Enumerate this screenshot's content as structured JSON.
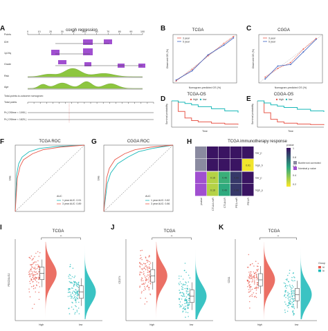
{
  "panels": {
    "A": {
      "label": "A",
      "title": "coxph regression",
      "rows": [
        "Points",
        "IDH",
        "1p19q",
        "Grade",
        "Risk",
        "Age",
        "Total points",
        "Pr( OStime < 1095 )",
        "Pr( OStime < 1825 )"
      ],
      "subtitle": "Total-points-to-outcome nomogram:",
      "points_ticks": [
        "0",
        "10",
        "20",
        "30",
        "40",
        "50",
        "60",
        "70",
        "80",
        "90",
        "100"
      ]
    },
    "B": {
      "label": "B",
      "title": "TCGA",
      "xlabel": "Nomogram-predicted OS (%)",
      "ylabel": "Observed OS (%)",
      "legend": [
        "3 year",
        "5 year"
      ]
    },
    "C": {
      "label": "C",
      "title": "CGGA",
      "xlabel": "Nomogram-predicted OS (%)",
      "ylabel": "Observed OS (%)",
      "legend": [
        "3 year",
        "5 year"
      ]
    },
    "D": {
      "label": "D",
      "title": "TCGA-OS",
      "xlabel": "Time",
      "ylabel": "Survival probability",
      "legend": [
        "high",
        "low"
      ]
    },
    "E": {
      "label": "E",
      "title": "CGGA-OS",
      "xlabel": "Time",
      "ylabel": "Survival probability",
      "legend": [
        "high",
        "low"
      ]
    },
    "F": {
      "label": "F",
      "title": "TCGA ROC",
      "ylabel": "TPR",
      "legend_title": "AUC",
      "legend": [
        "1 year AUC: 0.91",
        "3 year AUC: 0.89"
      ]
    },
    "G": {
      "label": "G",
      "title": "CGGA ROC",
      "ylabel": "TPR",
      "legend_title": "AUC",
      "legend": [
        "1 year AUC: 0.82",
        "3 year AUC: 0.86"
      ]
    },
    "H": {
      "label": "H",
      "title": "TCGA immunotherapy response",
      "rows": [
        "low_p",
        "high_b",
        "low_p",
        "high_p"
      ],
      "cols": [
        "pvalue",
        "CTLA4-noR",
        "CTLA4-R",
        "PD1-noR",
        "PD1-R"
      ],
      "cells": [
        [
          "",
          "",
          "",
          "",
          ""
        ],
        [
          "",
          "",
          "",
          "",
          "0.01"
        ],
        [
          "",
          "0.16",
          "0.46",
          "0.88",
          ""
        ],
        [
          "",
          "0.16",
          "0.49",
          "0.88",
          ""
        ]
      ],
      "colorbar_title": "pvalue",
      "colorbar_ticks": [
        "1",
        "0.8",
        "0.6",
        "0.4",
        "0.2"
      ],
      "legend": [
        "Bonferroni corrected",
        "Nominal p value"
      ]
    },
    "I": {
      "label": "I",
      "title": "TCGA",
      "ylabel": "PDCD1LG2",
      "groups": [
        "high",
        "low"
      ],
      "signif": "**"
    },
    "J": {
      "label": "J",
      "title": "TCGA",
      "ylabel": "CD274",
      "groups": [
        "high",
        "low"
      ],
      "signif": "**"
    },
    "K": {
      "label": "K",
      "title": "TCGA",
      "ylabel": "CD11",
      "groups": [
        "high",
        "low"
      ],
      "signif": "**",
      "legend_title": "Group",
      "legend": [
        "hi",
        "lo"
      ]
    }
  },
  "colors": {
    "red": "#e8574a",
    "teal": "#17b8b8",
    "blue": "#3b5fc0",
    "purple": "#a04fd0",
    "green": "#8dc63f",
    "heat_low": "#f5e62a",
    "heat_mid": "#2aa980",
    "heat_high": "#3a1462"
  },
  "chart_data": [
    {
      "type": "line",
      "title": "TCGA",
      "xlabel": "Nomogram-predicted OS (%)",
      "ylabel": "Observed OS (%)",
      "series": [
        {
          "name": "3 year",
          "x": [
            0.05,
            0.3,
            0.55,
            0.8,
            0.95
          ],
          "y": [
            0.04,
            0.28,
            0.56,
            0.82,
            0.96
          ]
        },
        {
          "name": "5 year",
          "x": [
            0.05,
            0.3,
            0.55,
            0.8,
            0.95
          ],
          "y": [
            0.06,
            0.25,
            0.58,
            0.78,
            0.93
          ]
        }
      ]
    },
    {
      "type": "line",
      "title": "CGGA",
      "xlabel": "Nomogram-predicted OS (%)",
      "ylabel": "Observed OS (%)",
      "series": [
        {
          "name": "3 year",
          "x": [
            0.1,
            0.3,
            0.5,
            0.7,
            0.9
          ],
          "y": [
            0.12,
            0.3,
            0.42,
            0.7,
            0.92
          ]
        },
        {
          "name": "5 year",
          "x": [
            0.1,
            0.3,
            0.5,
            0.7,
            0.9
          ],
          "y": [
            0.08,
            0.35,
            0.38,
            0.64,
            0.9
          ]
        }
      ]
    },
    {
      "type": "line",
      "title": "TCGA-OS",
      "xlabel": "Time",
      "ylabel": "Survival probability",
      "series": [
        {
          "name": "high",
          "x": [
            0,
            1,
            2,
            3,
            4,
            6,
            8,
            10
          ],
          "y": [
            1.0,
            0.6,
            0.35,
            0.25,
            0.2,
            0.15,
            0.12,
            0.1
          ]
        },
        {
          "name": "low",
          "x": [
            0,
            1,
            2,
            3,
            4,
            6,
            8,
            10
          ],
          "y": [
            1.0,
            0.95,
            0.9,
            0.85,
            0.78,
            0.7,
            0.62,
            0.55
          ]
        }
      ]
    },
    {
      "type": "line",
      "title": "CGGA-OS",
      "xlabel": "Time",
      "ylabel": "Survival probability",
      "series": [
        {
          "name": "high",
          "x": [
            0,
            1,
            2,
            3,
            4,
            6,
            8,
            10
          ],
          "y": [
            1.0,
            0.55,
            0.3,
            0.2,
            0.15,
            0.12,
            0.1,
            0.08
          ]
        },
        {
          "name": "low",
          "x": [
            0,
            1,
            2,
            3,
            4,
            6,
            8,
            10
          ],
          "y": [
            1.0,
            0.92,
            0.85,
            0.8,
            0.75,
            0.68,
            0.62,
            0.58
          ]
        }
      ]
    },
    {
      "type": "line",
      "title": "TCGA ROC",
      "ylabel": "TPR",
      "series": [
        {
          "name": "1 year AUC: 0.91",
          "x": [
            0,
            0.02,
            0.05,
            0.1,
            0.2,
            0.35,
            0.6,
            1
          ],
          "y": [
            0,
            0.55,
            0.72,
            0.82,
            0.9,
            0.95,
            0.98,
            1
          ]
        },
        {
          "name": "3 year AUC: 0.89",
          "x": [
            0,
            0.03,
            0.07,
            0.12,
            0.25,
            0.4,
            0.65,
            1
          ],
          "y": [
            0,
            0.5,
            0.68,
            0.78,
            0.87,
            0.93,
            0.97,
            1
          ]
        }
      ]
    },
    {
      "type": "line",
      "title": "CGGA ROC",
      "ylabel": "TPR",
      "series": [
        {
          "name": "1 year AUC: 0.82",
          "x": [
            0,
            0.05,
            0.1,
            0.2,
            0.35,
            0.5,
            0.7,
            1
          ],
          "y": [
            0,
            0.42,
            0.58,
            0.72,
            0.82,
            0.9,
            0.95,
            1
          ]
        },
        {
          "name": "3 year AUC: 0.86",
          "x": [
            0,
            0.04,
            0.08,
            0.16,
            0.3,
            0.45,
            0.68,
            1
          ],
          "y": [
            0,
            0.5,
            0.65,
            0.78,
            0.87,
            0.93,
            0.97,
            1
          ]
        }
      ]
    },
    {
      "type": "heatmap",
      "title": "TCGA immunotherapy response",
      "rows": [
        "low_p",
        "high_b",
        "low_p",
        "high_p"
      ],
      "cols": [
        "pvalue",
        "CTLA4-noR",
        "CTLA4-R",
        "PD1-noR",
        "PD1-R"
      ],
      "values": [
        [
          null,
          1.0,
          1.0,
          1.0,
          1.0
        ],
        [
          null,
          1.0,
          1.0,
          1.0,
          0.01
        ],
        [
          null,
          0.16,
          0.46,
          0.88,
          1.0
        ],
        [
          null,
          0.16,
          0.49,
          0.88,
          1.0
        ]
      ]
    },
    {
      "type": "scatter",
      "title": "TCGA",
      "ylabel": "PDCD1LG2",
      "categories": [
        "high",
        "low"
      ],
      "median": [
        0.58,
        0.35
      ]
    },
    {
      "type": "scatter",
      "title": "TCGA",
      "ylabel": "CD274",
      "categories": [
        "high",
        "low"
      ],
      "median": [
        0.55,
        0.3
      ]
    },
    {
      "type": "scatter",
      "title": "TCGA",
      "ylabel": "CD11",
      "categories": [
        "high",
        "low"
      ],
      "median": [
        0.5,
        0.32
      ]
    }
  ]
}
